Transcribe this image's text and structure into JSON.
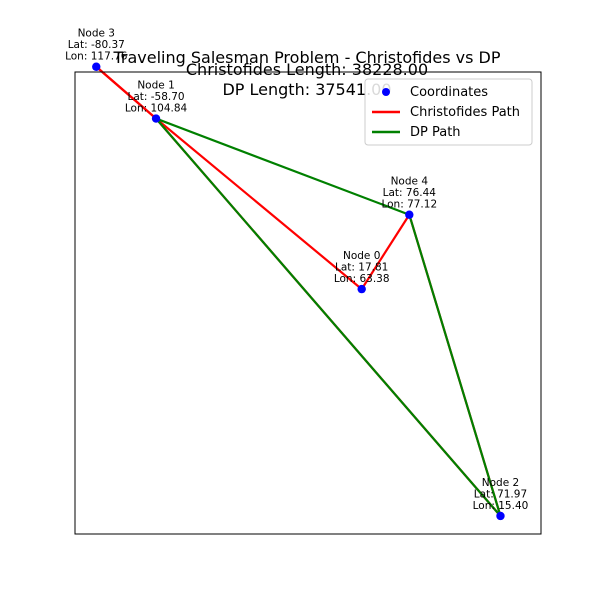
{
  "chart_data": {
    "type": "scatter",
    "title_lines": [
      "Traveling Salesman Problem - Christofides vs DP",
      "Christofides Length: 38228.00",
      "DP Length: 37541.00"
    ],
    "xlabel": "",
    "ylabel": "",
    "xlim": [
      -0.3,
      4.3
    ],
    "ylim": [
      -85,
      38
    ],
    "grid": false,
    "legend_position": "top-right",
    "nodes": [
      {
        "name": "Node 0",
        "lat": 17.81,
        "lon": 63.38,
        "lat_label": "Lat: 17.81",
        "lon_label": "Lon: 63.38",
        "x": 2.53,
        "y": -19.8
      },
      {
        "name": "Node 1",
        "lat": -58.7,
        "lon": 104.84,
        "lat_label": "Lat: -58.70",
        "lon_label": "Lon: 104.84",
        "x": 0.5,
        "y": 25.6
      },
      {
        "name": "Node 2",
        "lat": 71.97,
        "lon": 15.4,
        "lat_label": "Lat: 71.97",
        "lon_label": "Lon: 15.40",
        "x": 3.9,
        "y": -80.2
      },
      {
        "name": "Node 3",
        "lat": -80.37,
        "lon": 117.76,
        "lat_label": "Lat: -80.37",
        "lon_label": "Lon: 117.76",
        "x": -0.09,
        "y": 39.4
      },
      {
        "name": "Node 4",
        "lat": 76.44,
        "lon": 77.12,
        "lat_label": "Lat: 76.44",
        "lon_label": "Lon: 77.12",
        "x": 3.0,
        "y": 0.0
      }
    ],
    "series": [
      {
        "name": "Coordinates",
        "kind": "points",
        "color": "#0000ff"
      },
      {
        "name": "Christofides Path",
        "kind": "path",
        "color": "#ff0000",
        "order": [
          3,
          1,
          0,
          4,
          2,
          1,
          3
        ]
      },
      {
        "name": "DP Path",
        "kind": "path",
        "color": "#008000",
        "order": [
          1,
          4,
          2,
          1
        ]
      }
    ]
  }
}
